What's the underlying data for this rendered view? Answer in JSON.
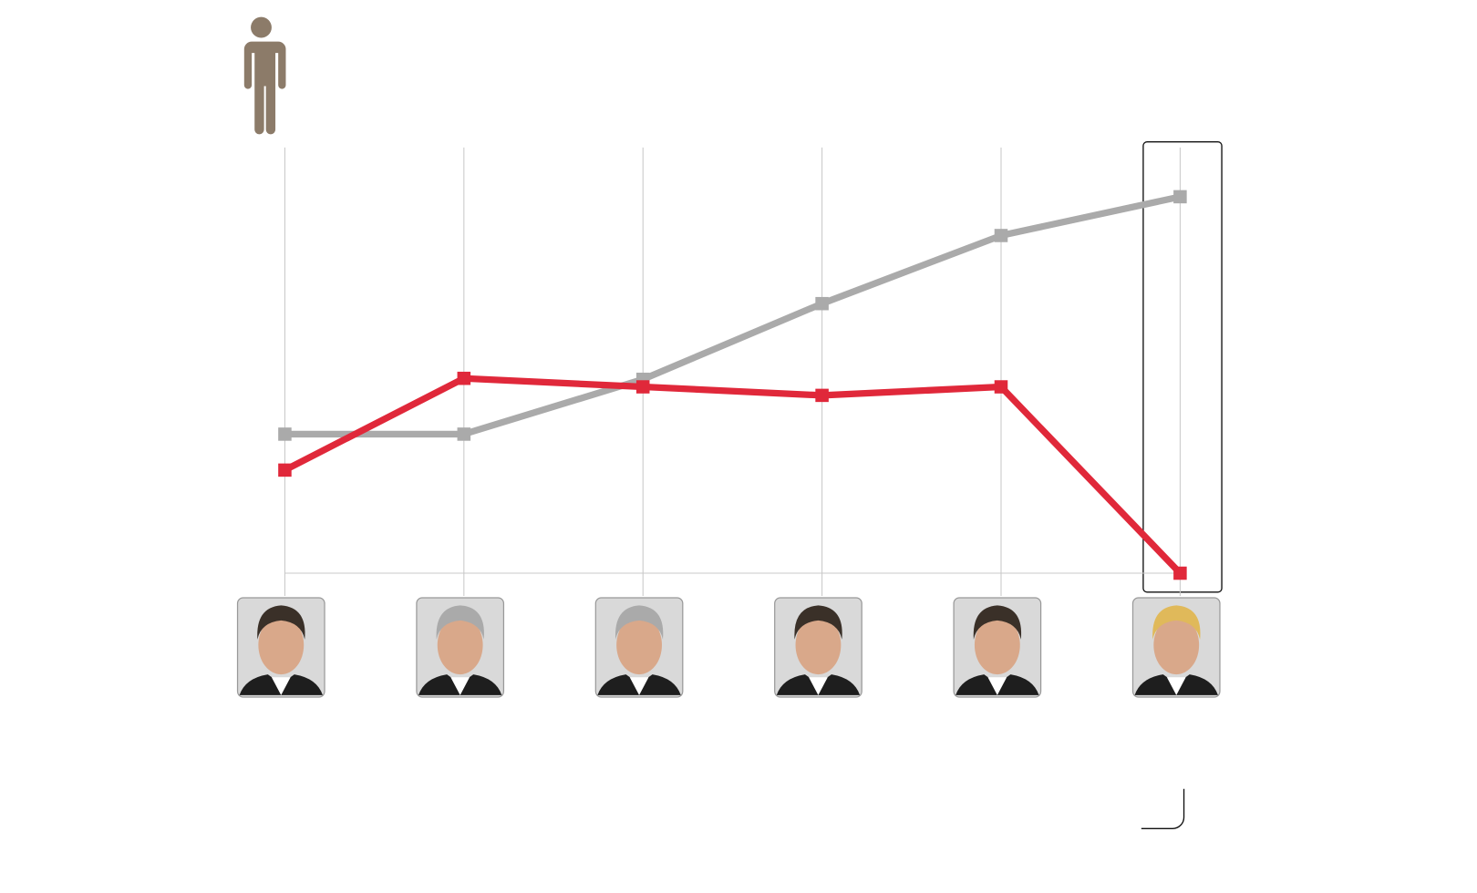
{
  "chart_data": {
    "type": "line",
    "categories": [
      null,
      null,
      null,
      null,
      null,
      null
    ],
    "series": [
      {
        "color": "#aaaaaa",
        "values": [
          147,
          147,
          205,
          285,
          357,
          398
        ]
      },
      {
        "color": "#e0283a",
        "values": [
          109,
          206,
          197,
          188,
          197,
          0
        ]
      }
    ],
    "ylim": [
      0,
      400
    ]
  }
}
